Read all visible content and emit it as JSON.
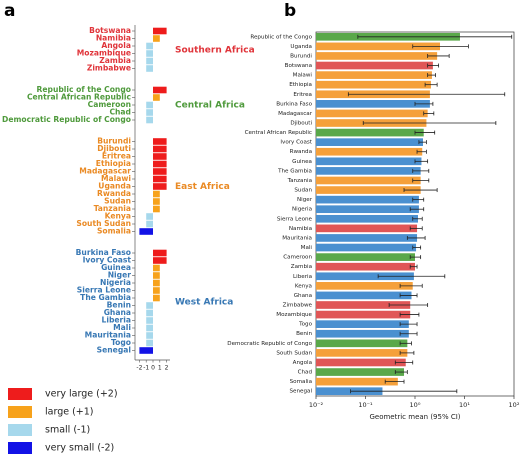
{
  "chart_data": [
    {
      "type": "grouped-hbar",
      "panel_label": "a",
      "groups": [
        {
          "name": "Southern Africa",
          "color": "#e0343a",
          "categories": [
            "Botswana",
            "Namibia",
            "Angola",
            "Mozambique",
            "Zambia",
            "Zimbabwe"
          ],
          "values": [
            2,
            1,
            -1,
            -1,
            -1,
            -1
          ]
        },
        {
          "name": "Central Africa",
          "color": "#4f9a3c",
          "categories": [
            "Republic of the Congo",
            "Central African Republic",
            "Cameroon",
            "Chad",
            "Democratic Republic of Congo"
          ],
          "values": [
            2,
            1,
            -1,
            -1,
            -1
          ]
        },
        {
          "name": "East Africa",
          "color": "#ea8a24",
          "categories": [
            "Burundi",
            "Djibouti",
            "Eritrea",
            "Ethiopia",
            "Madagascar",
            "Malawi",
            "Uganda",
            "Rwanda",
            "Sudan",
            "Tanzania",
            "Kenya",
            "South Sudan",
            "Somalia"
          ],
          "values": [
            2,
            2,
            2,
            2,
            2,
            2,
            2,
            1,
            1,
            1,
            -1,
            -1,
            -2
          ]
        },
        {
          "name": "West Africa",
          "color": "#3878b4",
          "categories": [
            "Burkina Faso",
            "Ivory Coast",
            "Guinea",
            "Niger",
            "Nigeria",
            "Sierra Leone",
            "The Gambia",
            "Benin",
            "Ghana",
            "Liberia",
            "Mali",
            "Mauritania",
            "Togo",
            "Senegal"
          ],
          "values": [
            2,
            2,
            1,
            1,
            1,
            1,
            1,
            -1,
            -1,
            -1,
            -1,
            -1,
            -1,
            -2
          ]
        }
      ],
      "xlim": [
        -2.5,
        2.5
      ],
      "xticks": [
        -2,
        -1,
        0,
        1,
        2
      ],
      "legend": [
        {
          "label": "very large (+2)",
          "value": 2,
          "color": "#ee1c1c"
        },
        {
          "label": "large (+1)",
          "value": 1,
          "color": "#f7a21b"
        },
        {
          "label": "small (-1)",
          "value": -1,
          "color": "#a6d8ec"
        },
        {
          "label": "very small (-2)",
          "value": -2,
          "color": "#1212e6"
        }
      ]
    },
    {
      "type": "hbar-ci",
      "panel_label": "b",
      "log_x": true,
      "categories": [
        "Republic of the Congo",
        "Uganda",
        "Burundi",
        "Botswana",
        "Malawi",
        "Ethiopia",
        "Eritrea",
        "Burkina Faso",
        "Madagascar",
        "Djibouti",
        "Central African Republic",
        "Ivory Coast",
        "Rwanda",
        "Guinea",
        "The Gambia",
        "Tanzania",
        "Sudan",
        "Niger",
        "Nigeria",
        "Sierra Leone",
        "Namibia",
        "Mauritania",
        "Mali",
        "Cameroon",
        "Zambia",
        "Liberia",
        "Kenya",
        "Ghana",
        "Zimbabwe",
        "Mozambique",
        "Togo",
        "Benin",
        "Democratic Republic of Congo",
        "South Sudan",
        "Angola",
        "Chad",
        "Somalia",
        "Senegal"
      ],
      "values": [
        8.1,
        3.2,
        2.8,
        2.3,
        2.2,
        2.1,
        2.0,
        2.0,
        1.8,
        1.7,
        1.5,
        1.45,
        1.4,
        1.35,
        1.3,
        1.3,
        1.3,
        1.2,
        1.2,
        1.15,
        1.1,
        1.1,
        1.05,
        1.0,
        1.0,
        0.95,
        0.9,
        0.85,
        0.8,
        0.8,
        0.75,
        0.75,
        0.7,
        0.7,
        0.65,
        0.6,
        0.45,
        0.22
      ],
      "ci_low": [
        0.07,
        0.9,
        1.8,
        1.8,
        1.8,
        1.6,
        0.045,
        1.0,
        1.5,
        0.09,
        1.0,
        1.2,
        1.1,
        1.0,
        0.9,
        0.9,
        0.6,
        0.9,
        0.8,
        0.9,
        0.8,
        0.7,
        0.9,
        0.8,
        0.8,
        0.18,
        0.5,
        0.5,
        0.3,
        0.5,
        0.5,
        0.5,
        0.5,
        0.5,
        0.4,
        0.4,
        0.25,
        0.05
      ],
      "ci_high": [
        90,
        12,
        4.9,
        3.0,
        2.6,
        2.8,
        65,
        2.3,
        2.4,
        43,
        2.5,
        1.7,
        1.7,
        1.8,
        1.9,
        1.9,
        2.8,
        1.5,
        1.5,
        1.4,
        1.4,
        1.6,
        1.3,
        1.3,
        1.1,
        4.0,
        1.4,
        1.1,
        1.8,
        1.2,
        1.1,
        1.1,
        0.85,
        0.95,
        0.9,
        0.7,
        0.6,
        7
      ],
      "colors": [
        "#5aa84a",
        "#f5a03a",
        "#f5a03a",
        "#e05656",
        "#f5a03a",
        "#f5a03a",
        "#f5a03a",
        "#4a90d0",
        "#f5a03a",
        "#f5a03a",
        "#5aa84a",
        "#4a90d0",
        "#f5a03a",
        "#4a90d0",
        "#4a90d0",
        "#f5a03a",
        "#f5a03a",
        "#4a90d0",
        "#4a90d0",
        "#4a90d0",
        "#e05656",
        "#4a90d0",
        "#4a90d0",
        "#5aa84a",
        "#e05656",
        "#4a90d0",
        "#f5a03a",
        "#4a90d0",
        "#e05656",
        "#e05656",
        "#4a90d0",
        "#4a90d0",
        "#5aa84a",
        "#f5a03a",
        "#e05656",
        "#5aa84a",
        "#f5a03a",
        "#4a90d0"
      ],
      "xlim": [
        0.01,
        100
      ],
      "xticks": [
        {
          "value": 0.01,
          "label": "10⁻²"
        },
        {
          "value": 0.1,
          "label": "10⁻¹"
        },
        {
          "value": 1,
          "label": "10⁰"
        },
        {
          "value": 10,
          "label": "10¹"
        },
        {
          "value": 100,
          "label": "10²"
        }
      ],
      "xlabel": "Geometric mean (95% CI)"
    }
  ]
}
